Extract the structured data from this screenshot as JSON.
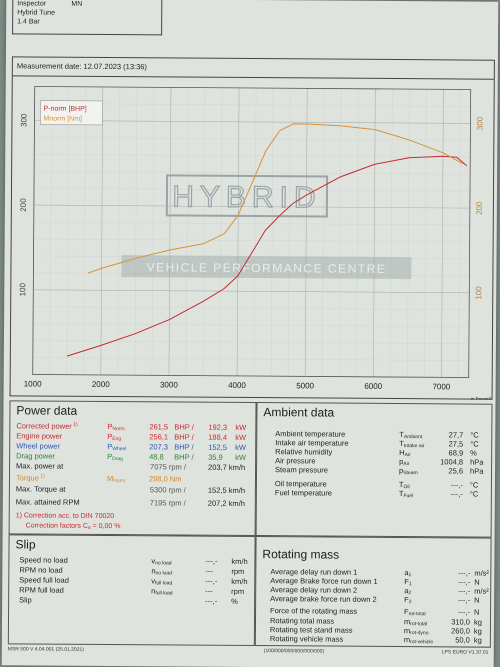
{
  "header": {
    "inspector_label": "Inspector",
    "inspector_value": "MN",
    "tune": "Hybrid Tune",
    "pressure": "1.4 Bar"
  },
  "measurement_date": "Measurement date: 12.07.2023 (13:36)",
  "watermark": {
    "logo_text": "HYBRID",
    "banner_text": "VEHICLE PERFORMANCE CENTRE"
  },
  "chart_data": {
    "type": "line",
    "legend": [
      "P-norm [BHP]",
      "Mnorm [Nm]"
    ],
    "x_ticks": [
      "1000",
      "2000",
      "3000",
      "4000",
      "5000",
      "6000",
      "7000"
    ],
    "x_unit": "n [rpm]",
    "xlim": [
      1000,
      7400
    ],
    "y_left_ticks": [
      "100",
      "200",
      "300"
    ],
    "ylim_left": [
      0,
      340
    ],
    "y_right_ticks": [
      "100",
      "200",
      "300"
    ],
    "ylim_right": [
      0,
      340
    ],
    "series": [
      {
        "name": "P-norm [BHP]",
        "color": "#c42a32",
        "x": [
          1500,
          2000,
          2500,
          3000,
          3500,
          3800,
          4000,
          4200,
          4400,
          4600,
          4800,
          5000,
          5500,
          6000,
          6500,
          7000,
          7200,
          7350
        ],
        "y": [
          22,
          35,
          49,
          66,
          88,
          103,
          118,
          145,
          172,
          189,
          204,
          214,
          236,
          251,
          259,
          261,
          260,
          250
        ]
      },
      {
        "name": "Mnorm [Nm]",
        "color": "#d9913a",
        "x": [
          1800,
          2000,
          2500,
          3000,
          3500,
          3800,
          4000,
          4200,
          4400,
          4600,
          4800,
          5000,
          5500,
          6000,
          6500,
          7000,
          7300
        ],
        "y": [
          120,
          126,
          138,
          148,
          156,
          168,
          190,
          228,
          266,
          290,
          298,
          298,
          296,
          292,
          280,
          265,
          252
        ]
      }
    ]
  },
  "power_data": {
    "title": "Power data",
    "rows": [
      {
        "label": "Corrected power",
        "sup": "1)",
        "sym": "P",
        "sub": "Norm",
        "v1": "261,5",
        "u1": "BHP",
        "v2": "192,3",
        "u2": "kW"
      },
      {
        "label": "Engine power",
        "sup": "",
        "sym": "P",
        "sub": "Eng",
        "v1": "256,1",
        "u1": "BHP",
        "v2": "188,4",
        "u2": "kW"
      },
      {
        "label": "Wheel power",
        "sup": "",
        "sym": "P",
        "sub": "Wheel",
        "v1": "207,3",
        "u1": "BHP",
        "v2": "152,5",
        "u2": "kW"
      },
      {
        "label": "Drag power",
        "sup": "",
        "sym": "P",
        "sub": "Drag",
        "v1": "48,8",
        "u1": "BHP",
        "v2": "35,9",
        "u2": "kW"
      }
    ],
    "max_power_at": {
      "label": "Max. power at",
      "v1": "7075",
      "u1": "rpm",
      "v2": "203,7",
      "u2": "km/h"
    },
    "torque": {
      "label": "Torque",
      "sup": "1)",
      "sym": "M",
      "sub": "Norm",
      "v1": "298,0",
      "u1": "Nm"
    },
    "max_torque_at": {
      "label": "Max. Torque at",
      "v1": "5300",
      "u1": "rpm",
      "v2": "152,5",
      "u2": "km/h"
    },
    "max_rpm": {
      "label": "Max. attained RPM",
      "v1": "7195",
      "u1": "rpm",
      "v2": "207,2",
      "u2": "km/h"
    },
    "correction_note": "1) Correction acc. to DIN 70020",
    "correction_factors": "Correction factors  C",
    "correction_sub": "a",
    "correction_value": "=   0,00 %"
  },
  "ambient_data": {
    "title": "Ambient data",
    "rows": [
      {
        "label": "Ambient temperature",
        "sym": "T",
        "sub": "Ambient",
        "v": "27,7",
        "u": "°C"
      },
      {
        "label": "Intake air temperature",
        "sym": "T",
        "sub": "Intake air",
        "v": "27,5",
        "u": "°C"
      },
      {
        "label": "Relative humidity",
        "sym": "H",
        "sub": "Air",
        "v": "68,9",
        "u": "%"
      },
      {
        "label": "Air pressure",
        "sym": "p",
        "sub": "Air",
        "v": "1004,8",
        "u": "hPa"
      },
      {
        "label": "Steam pressure",
        "sym": "p",
        "sub": "Steam",
        "v": "25,6",
        "u": "hPa"
      },
      {
        "label": "Oil temperature",
        "sym": "T",
        "sub": "Oil",
        "v": "---,-",
        "u": "°C"
      },
      {
        "label": "Fuel temperature",
        "sym": "T",
        "sub": "Fuel",
        "v": "---,-",
        "u": "°C"
      }
    ]
  },
  "slip": {
    "title": "Slip",
    "rows": [
      {
        "label": "Speed no load",
        "sym": "v",
        "sub": "no load",
        "v": "---,-",
        "u": "km/h"
      },
      {
        "label": "RPM no load",
        "sym": "n",
        "sub": "no load",
        "v": "---",
        "u": "rpm"
      },
      {
        "label": "Speed full load",
        "sym": "v",
        "sub": "full load",
        "v": "---,-",
        "u": "km/h"
      },
      {
        "label": "RPM full load",
        "sym": "n",
        "sub": "full load",
        "v": "---",
        "u": "rpm"
      },
      {
        "label": "Slip",
        "sym": "",
        "sub": "",
        "v": "---,-",
        "u": "%"
      }
    ]
  },
  "rotating_mass": {
    "title": "Rotating mass",
    "rows": [
      {
        "label": "Average delay run down 1",
        "sym": "a",
        "sub": "1",
        "v": "---,-",
        "u": "m/s²"
      },
      {
        "label": "Average Brake force run down 1",
        "sym": "F",
        "sub": "1",
        "v": "---,-",
        "u": "N"
      },
      {
        "label": "Average delay run down 2",
        "sym": "a",
        "sub": "2",
        "v": "---,-",
        "u": "m/s²"
      },
      {
        "label": "Average brake force run down 2",
        "sym": "F",
        "sub": "2",
        "v": "---,-",
        "u": "N"
      },
      {
        "label": "Force of the rotating mass",
        "sym": "F",
        "sub": "rot-total",
        "v": "---,-",
        "u": "N"
      },
      {
        "label": "Rotating total mass",
        "sym": "m",
        "sub": "rot-total",
        "v": "310,0",
        "u": "kg"
      },
      {
        "label": "Rotating test stand mass",
        "sym": "m",
        "sub": "rot-dyno",
        "v": "260,0",
        "u": "kg"
      },
      {
        "label": "Rotating vehicle mass",
        "sym": "m",
        "sub": "rot-vehicle",
        "v": "50,0",
        "u": "kg"
      }
    ]
  },
  "footer": {
    "left": "MSR 500 V 4.04.001 (25.01.2021)",
    "center": "(100/000/000/000/000/000)",
    "right": "LPS EURO V1.37.01"
  },
  "colors": {
    "power": "#c42a32",
    "torque": "#d9913a",
    "engine": "#c9282e",
    "wheel": "#2b55b5",
    "drag": "#2f7d3a"
  }
}
